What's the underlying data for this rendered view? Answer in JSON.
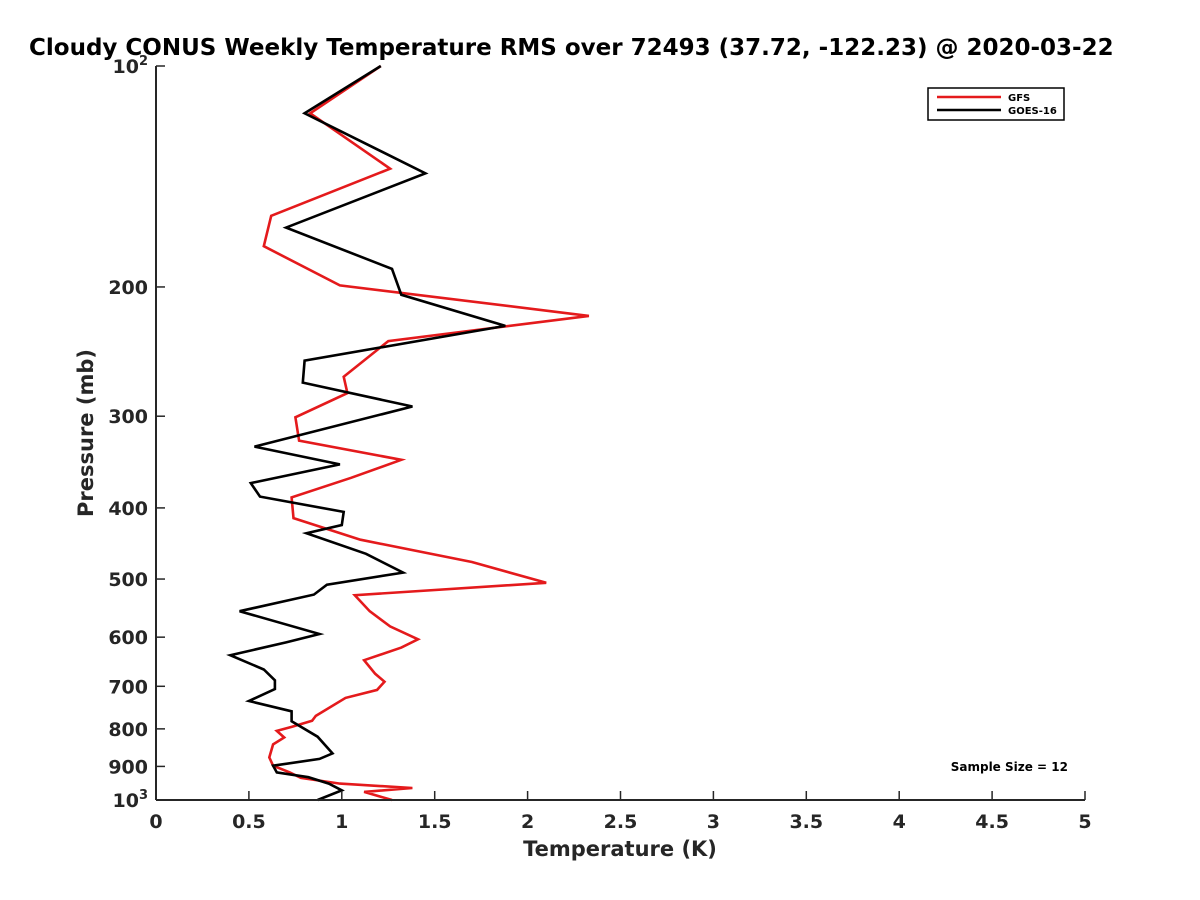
{
  "chart_data": {
    "type": "line",
    "title": "Cloudy CONUS Weekly Temperature RMS over 72493 (37.72, -122.23) @ 2020-03-22",
    "xlabel": "Temperature (K)",
    "ylabel": "Pressure (mb)",
    "xlim": [
      0,
      5
    ],
    "ylim": [
      100,
      1000
    ],
    "y_scale": "log",
    "y_reversed": true,
    "grid": false,
    "legend_position": "top-right",
    "x_ticks": [
      "0",
      "0.5",
      "1",
      "1.5",
      "2",
      "2.5",
      "3",
      "3.5",
      "4",
      "4.5",
      "5"
    ],
    "x_tick_values": [
      0,
      0.5,
      1,
      1.5,
      2,
      2.5,
      3,
      3.5,
      4,
      4.5,
      5
    ],
    "y_ticks": [
      {
        "value": 100,
        "base": "10",
        "exp": "2"
      },
      {
        "value": 200,
        "label": "200"
      },
      {
        "value": 300,
        "label": "300"
      },
      {
        "value": 400,
        "label": "400"
      },
      {
        "value": 500,
        "label": "500"
      },
      {
        "value": 600,
        "label": "600"
      },
      {
        "value": 700,
        "label": "700"
      },
      {
        "value": 800,
        "label": "800"
      },
      {
        "value": 900,
        "label": "900"
      },
      {
        "value": 1000,
        "base": "10",
        "exp": "3"
      }
    ],
    "series": [
      {
        "name": "GFS",
        "color": "#e41a1c",
        "points": [
          [
            1.21,
            100
          ],
          [
            0.83,
            116
          ],
          [
            1.26,
            138
          ],
          [
            0.62,
            160
          ],
          [
            0.58,
            176
          ],
          [
            0.99,
            199
          ],
          [
            2.33,
            219
          ],
          [
            1.25,
            237
          ],
          [
            1.01,
            265
          ],
          [
            1.03,
            279
          ],
          [
            0.75,
            301
          ],
          [
            0.77,
            324
          ],
          [
            1.32,
            344
          ],
          [
            1.05,
            364
          ],
          [
            0.73,
            387
          ],
          [
            0.74,
            413
          ],
          [
            1.1,
            442
          ],
          [
            1.7,
            474
          ],
          [
            2.1,
            506
          ],
          [
            1.07,
            526
          ],
          [
            1.15,
            553
          ],
          [
            1.26,
            580
          ],
          [
            1.41,
            604
          ],
          [
            1.32,
            620
          ],
          [
            1.12,
            645
          ],
          [
            1.18,
            673
          ],
          [
            1.23,
            690
          ],
          [
            1.19,
            708
          ],
          [
            1.02,
            726
          ],
          [
            0.86,
            768
          ],
          [
            0.84,
            780
          ],
          [
            0.73,
            795
          ],
          [
            0.65,
            805
          ],
          [
            0.69,
            822
          ],
          [
            0.63,
            840
          ],
          [
            0.61,
            875
          ],
          [
            0.63,
            898
          ],
          [
            0.72,
            917
          ],
          [
            0.78,
            933
          ],
          [
            0.99,
            950
          ],
          [
            1.38,
            963
          ],
          [
            1.12,
            975
          ],
          [
            1.27,
            1000
          ]
        ]
      },
      {
        "name": "GOES-16",
        "color": "#000000",
        "points": [
          [
            1.21,
            100
          ],
          [
            0.8,
            116
          ],
          [
            1.45,
            140
          ],
          [
            0.7,
            166
          ],
          [
            1.27,
            189
          ],
          [
            1.32,
            205
          ],
          [
            1.88,
            226
          ],
          [
            0.8,
            252
          ],
          [
            0.79,
            270
          ],
          [
            1.38,
            291
          ],
          [
            0.53,
            330
          ],
          [
            0.99,
            349
          ],
          [
            0.51,
            370
          ],
          [
            0.56,
            386
          ],
          [
            1.01,
            405
          ],
          [
            1.0,
            422
          ],
          [
            0.81,
            433
          ],
          [
            1.13,
            462
          ],
          [
            1.33,
            490
          ],
          [
            0.92,
            509
          ],
          [
            0.85,
            525
          ],
          [
            0.45,
            553
          ],
          [
            0.88,
            594
          ],
          [
            0.7,
            610
          ],
          [
            0.4,
            635
          ],
          [
            0.58,
            664
          ],
          [
            0.64,
            687
          ],
          [
            0.64,
            706
          ],
          [
            0.5,
            733
          ],
          [
            0.73,
            757
          ],
          [
            0.73,
            781
          ],
          [
            0.87,
            820
          ],
          [
            0.95,
            864
          ],
          [
            0.88,
            879
          ],
          [
            0.63,
            898
          ],
          [
            0.65,
            917
          ],
          [
            0.82,
            931
          ],
          [
            0.93,
            950
          ],
          [
            1.0,
            970
          ],
          [
            0.87,
            1000
          ]
        ]
      }
    ],
    "annotation": "Sample Size = 12"
  }
}
